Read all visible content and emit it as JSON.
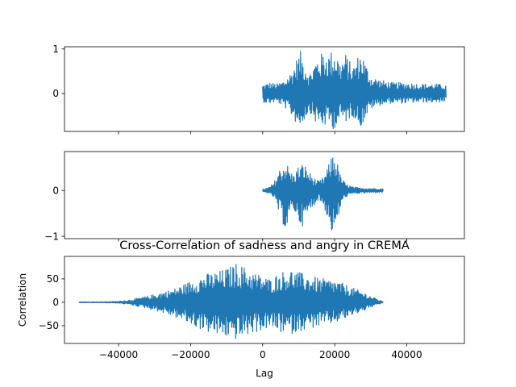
{
  "chart_data": [
    {
      "type": "line",
      "name": "top-signal",
      "title": "",
      "xlabel": "",
      "ylabel": "",
      "xlim": [
        -55000,
        56000
      ],
      "ylim": [
        -0.85,
        1.05
      ],
      "xticks": [
        -40000,
        -20000,
        0,
        20000,
        40000
      ],
      "xtick_labels_visible": false,
      "yticks": [
        0,
        1
      ],
      "ytick_labels": [
        "0",
        "1"
      ],
      "series": [
        {
          "color": "#1f77b4",
          "x_start": 0,
          "x_end": 51000,
          "envelope": {
            "x": [
              0,
              2000,
              4000,
              6000,
              8000,
              9500,
              10500,
              11500,
              13000,
              15000,
              17000,
              18500,
              19500,
              20500,
              21500,
              23000,
              25000,
              26500,
              27500,
              28500,
              30000,
              33000,
              36000,
              40000,
              44000,
              48000,
              51000
            ],
            "upper": [
              0.2,
              0.25,
              0.22,
              0.3,
              0.5,
              0.8,
              0.95,
              0.75,
              0.45,
              0.8,
              0.95,
              0.9,
              1.0,
              0.95,
              0.7,
              0.9,
              0.6,
              0.85,
              0.95,
              0.7,
              0.4,
              0.3,
              0.25,
              0.25,
              0.22,
              0.22,
              0.2
            ],
            "lower": [
              -0.2,
              -0.22,
              -0.2,
              -0.3,
              -0.5,
              -0.7,
              -0.75,
              -0.6,
              -0.4,
              -0.7,
              -0.75,
              -0.7,
              -0.8,
              -0.75,
              -0.6,
              -0.65,
              -0.5,
              -0.7,
              -0.75,
              -0.55,
              -0.35,
              -0.25,
              -0.22,
              -0.22,
              -0.2,
              -0.2,
              -0.18
            ]
          }
        }
      ]
    },
    {
      "type": "line",
      "name": "middle-signal",
      "title": "",
      "xlabel": "",
      "ylabel": "",
      "xlim": [
        -55000,
        56000
      ],
      "ylim": [
        -1.05,
        0.85
      ],
      "xticks": [
        -40000,
        -20000,
        0,
        20000,
        40000
      ],
      "xtick_labels_visible": false,
      "yticks": [
        -1,
        0
      ],
      "ytick_labels": [
        "−1",
        "0"
      ],
      "series": [
        {
          "color": "#1f77b4",
          "x_start": 0,
          "x_end": 33500,
          "envelope": {
            "x": [
              0,
              1500,
              3000,
              4500,
              5500,
              6500,
              7500,
              8500,
              10000,
              11500,
              12500,
              14000,
              15500,
              17000,
              18500,
              19500,
              20500,
              21500,
              23000,
              25000,
              27000,
              30000,
              33500
            ],
            "upper": [
              0.03,
              0.06,
              0.15,
              0.45,
              0.55,
              0.65,
              0.45,
              0.35,
              0.55,
              0.6,
              0.45,
              0.3,
              0.2,
              0.3,
              0.6,
              0.85,
              0.7,
              0.35,
              0.15,
              0.08,
              0.06,
              0.05,
              0.04
            ],
            "lower": [
              -0.03,
              -0.06,
              -0.15,
              -0.5,
              -0.7,
              -0.9,
              -0.6,
              -0.4,
              -0.7,
              -0.8,
              -0.55,
              -0.35,
              -0.2,
              -0.35,
              -0.75,
              -1.0,
              -0.85,
              -0.4,
              -0.15,
              -0.08,
              -0.06,
              -0.05,
              -0.04
            ]
          }
        }
      ]
    },
    {
      "type": "line",
      "name": "cross-correlation",
      "title": "Cross-Correlation of sadness and angry in CREMA",
      "xlabel": "Lag",
      "ylabel": "Correlation",
      "xlim": [
        -55000,
        56000
      ],
      "ylim": [
        -88,
        98
      ],
      "xticks": [
        -40000,
        -20000,
        0,
        20000,
        40000
      ],
      "xtick_labels": [
        "−40000",
        "−20000",
        "0",
        "20000",
        "40000"
      ],
      "xtick_labels_visible": true,
      "yticks": [
        -50,
        0,
        50
      ],
      "ytick_labels": [
        "−50",
        "0",
        "50"
      ],
      "series": [
        {
          "color": "#1f77b4",
          "x_start": -51000,
          "x_end": 33500,
          "envelope": {
            "x": [
              -51000,
              -45000,
              -40000,
              -37000,
              -34000,
              -31000,
              -28000,
              -25000,
              -22000,
              -19000,
              -16000,
              -13000,
              -10000,
              -7000,
              -4000,
              -1000,
              2000,
              5000,
              8000,
              11000,
              14000,
              17000,
              20000,
              23000,
              26000,
              29000,
              31500,
              33500
            ],
            "upper": [
              1,
              1,
              2,
              5,
              10,
              15,
              22,
              28,
              38,
              50,
              60,
              65,
              72,
              85,
              70,
              60,
              50,
              65,
              70,
              62,
              55,
              50,
              48,
              38,
              28,
              18,
              8,
              1
            ],
            "lower": [
              -1,
              -1,
              -2,
              -5,
              -10,
              -15,
              -22,
              -30,
              -40,
              -52,
              -62,
              -70,
              -75,
              -80,
              -70,
              -62,
              -55,
              -65,
              -68,
              -60,
              -55,
              -50,
              -45,
              -35,
              -25,
              -15,
              -7,
              -1
            ]
          }
        }
      ]
    }
  ]
}
